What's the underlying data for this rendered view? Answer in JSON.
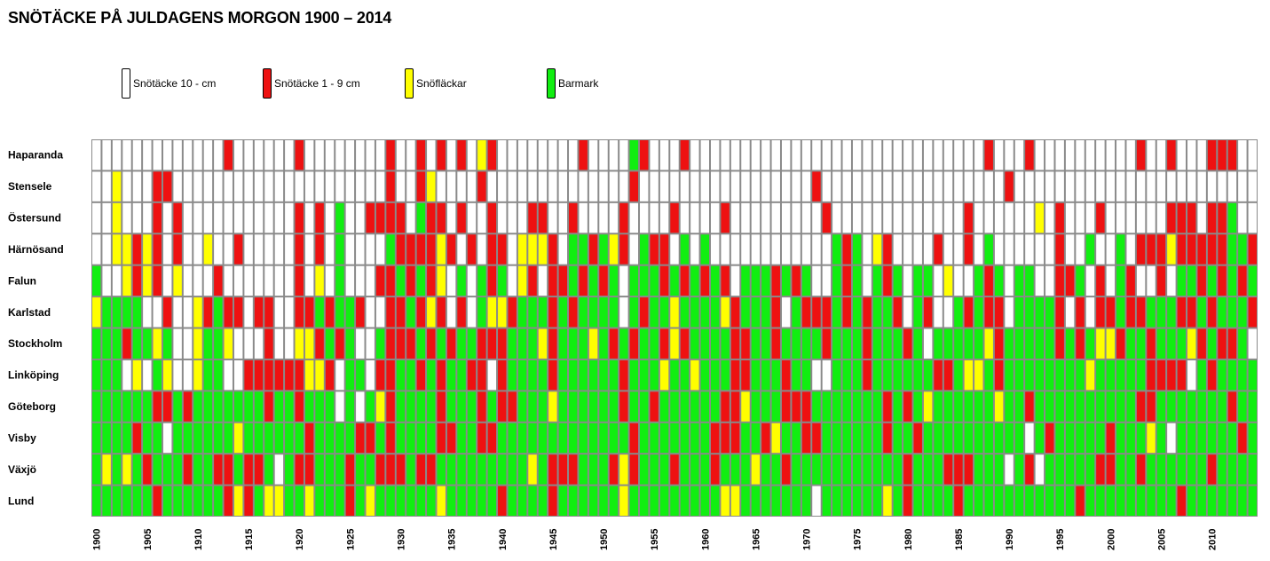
{
  "title": "SNÖTÄCKE PÅ JULDAGENS MORGON 1900 – 2014",
  "legend": [
    {
      "label": "Snötäcke 10 -  cm",
      "color": "#ffffff",
      "code": "W"
    },
    {
      "label": "Snötäcke  1 - 9 cm",
      "color": "#ee1111",
      "code": "R"
    },
    {
      "label": "Snöfläckar",
      "color": "#ffff00",
      "code": "Y"
    },
    {
      "label": "Barmark",
      "color": "#11ee11",
      "code": "G"
    }
  ],
  "chart_data": {
    "type": "heatmap",
    "title": "SNÖTÄCKE PÅ JULDAGENS MORGON 1900 – 2014",
    "x_start": 1900,
    "x_end": 2014,
    "x_tick_labels": [
      "1900",
      "1905",
      "1910",
      "1915",
      "1920",
      "1925",
      "1930",
      "1935",
      "1940",
      "1945",
      "1950",
      "1955",
      "1960",
      "1965",
      "1970",
      "1975",
      "1980",
      "1985",
      "1990",
      "1995",
      "2000",
      "2005",
      "2010"
    ],
    "categories": {
      "W": "Snötäcke 10 -  cm",
      "R": "Snötäcke  1 - 9 cm",
      "Y": "Snöfläckar",
      "G": "Barmark"
    },
    "colors": {
      "W": "#ffffff",
      "R": "#ee1111",
      "Y": "#ffff00",
      "G": "#11ee11"
    },
    "stations": [
      {
        "name": "Haparanda",
        "values": "WWWWWWWWWWWWWRWWWWWWRWWWWWWWWRWWRWRWRWYRWWWWWWWWRWWWWGRWWWRWWWWWWWWWWWWWWWWWWWWWWWWWWWWWRWWWRWWWWWWWWWWRWWRWWWRRRWWWWWR"
      },
      {
        "name": "Stensele",
        "values": "WWYWWWRRWWWWWWWWWWWWWWWWWWWWWRWWRYWWWWRWWWWWWWWWWWWWWRWWWWWWWWWWWWWWWWWRWWWWWWWWWWWWWWWWWWRWWWWWWWWWWWWWWWWWWWWWWWW"
      },
      {
        "name": "Östersund",
        "values": "WWYWWWRWRWWWWWWWWWWWRWRWGWWRRRRWGRRWRWWRWWWRRWWRWWWWRWWWWRWWWWRWWWWWWWWWRWWWWWWWWWWWWWRWWWWWWYWRWWWRWWWWWWRRRWRRGWWWWR"
      },
      {
        "name": "Härnösand",
        "values": "WWYYRYRWRWWYWWRWWWWWRWRWGWWWWGRRRRYRWRWRRWYYYRWGGRGYRWGRRWGWGWWWWWWWWWWWWGRGWYRWWWWRWWRWGWWWWWWRWWGWWGWRRRYRRRRRGGRWWRWG"
      },
      {
        "name": "Falun",
        "values": "GWWYRYRWYWWWRWWWWWWWRWYWGWWWRRGRGRYWGWGRGWYRWRRGRGRGWGGGRGRGRGRWGGGRGRGWWGRGWGRGWGGWYWWGRGWGGWWRRGWRWGRWWRWGGRGRGRGGWGG"
      },
      {
        "name": "Karlstad",
        "values": "YGGGGWWRWWYRGRRWRRWWRRGRGGRWWRRGRYRWRWGYYRGGGRGRGGGGWGRGGYGGGGYRGGGRWGRRRGRGRGGRWGRWWGRGRRWGGGGRWRWRRGRRGGGRRGRGGGRWWGW"
      },
      {
        "name": "Stockholm",
        "values": "GGGRGGYGWWYGGYWWWRWWYYRGRGWWGRRRGRGRGGRRRGGGYRGGGYGRGRGGRYRGGGGRRGGRGGGGRGGGRGGGRGWGGGGGYRGGGGGRGRGYYRGGRGGGYRGRRGWGWWGY"
      },
      {
        "name": "Linköping",
        "values": "GGGWYWGYWWYGGWWRRRRRRYYRWGGWRRGGRGRGGRRWRGGGGRGGGGGGRGGGYGGYGGGRRGGGRGGWWGGGRGGGGGGRRGYYGRGGGGGGGGYGGGGGRRRRWGRGGGGGGGGGG"
      },
      {
        "name": "Göteborg",
        "values": "GGGGGGRRGRGGGGGGGRGGRGGGWGWGYRGGGGRGGGRGRRGGGYGGGGGGRGGRGGGGGGRRYGGGRRRGGGGGGGRGRGYGGGGGGYGGRGGGGGGGGGGRRGGGGGGGRGGGGRGR"
      },
      {
        "name": "Visby",
        "values": "GGGGRGGWGGGGGGYGGGGGGRGGGGRRGRGGGGRRGGRRGGGGGGGGGGGGGRGGGGGGGRRRGGRYGGRRGGGGGGRGGRGGGGGGGGGGWGRGGGGGRGGGYGWGGGGGGRGGGGRGG"
      },
      {
        "name": "Växjö",
        "values": "GYGYGRGGGRGGRRGRRGWGRRGGGRGGRRRGRRGGGGGGGGGYGRRRGGGRYRGGGRGGGRGGGYGGRGGGGGGGGGGGRGGGRRRGGGWGRWGGGGGRRGGRGGGGGGRGGGGGRGG"
      },
      {
        "name": "Lund",
        "values": "GGGGGGRGGGGGGRYRGYYGGYGGGRGYGGGGGGYGGGGGRGGGGRGGGGGGYGGGGGGGGGYYGGGGGGGWGGGGGGYGRGGGGRGGGGGGGGGGGRGGGGGGGGGRGGGGGGGRGRGGGGG"
      }
    ]
  }
}
